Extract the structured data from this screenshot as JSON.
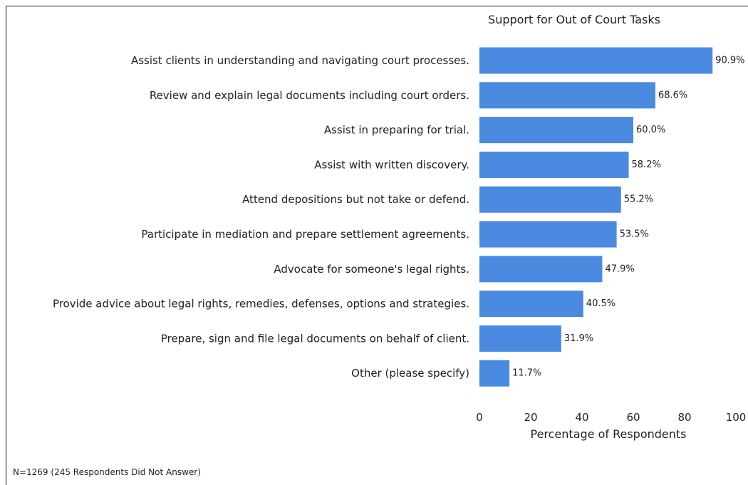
{
  "chart_data": {
    "type": "bar",
    "orientation": "horizontal",
    "title": "Support for Out of Court Tasks",
    "xlabel": "Percentage of Respondents",
    "ylabel": "",
    "xlim": [
      0,
      100
    ],
    "xticks": [
      0,
      20,
      40,
      60,
      80,
      100
    ],
    "grid": false,
    "bar_color": "#4a8ae0",
    "categories": [
      "Assist clients in understanding and navigating court processes.",
      "Review and explain legal documents including court orders.",
      "Assist in preparing for trial.",
      "Assist with written discovery.",
      "Attend depositions but not take or defend.",
      "Participate in mediation and prepare settlement agreements.",
      "Advocate for someone's legal rights.",
      "Provide advice about legal rights, remedies, defenses, options and strategies.",
      "Prepare, sign and file legal documents on behalf of client.",
      "Other (please specify)"
    ],
    "values": [
      90.9,
      68.6,
      60.0,
      58.2,
      55.2,
      53.5,
      47.9,
      40.5,
      31.9,
      11.7
    ],
    "value_labels": [
      "90.9%",
      "68.6%",
      "60.0%",
      "58.2%",
      "55.2%",
      "53.5%",
      "47.9%",
      "40.5%",
      "31.9%",
      "11.7%"
    ]
  },
  "footnote": "N=1269 (245 Respondents Did Not Answer)"
}
